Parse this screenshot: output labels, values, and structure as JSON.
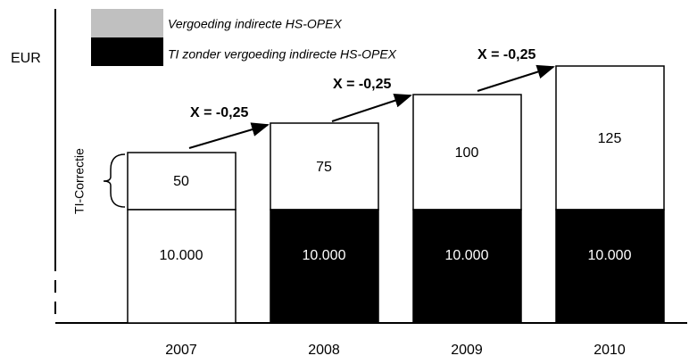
{
  "legend": [
    "Vergoeding indirecte HS-OPEX",
    "TI zonder vergoeding indirecte HS-OPEX"
  ],
  "y_axis_label": "EUR",
  "bracket_label": "TI-Correctie",
  "categories": [
    "2007",
    "2008",
    "2009",
    "2010"
  ],
  "top_values": [
    "50",
    "75",
    "100",
    "125"
  ],
  "bottom_values": [
    "10.000",
    "10.000",
    "10.000",
    "10.000"
  ],
  "annotations": [
    "X = -0,25",
    "X = -0,25",
    "X = -0,25"
  ]
}
